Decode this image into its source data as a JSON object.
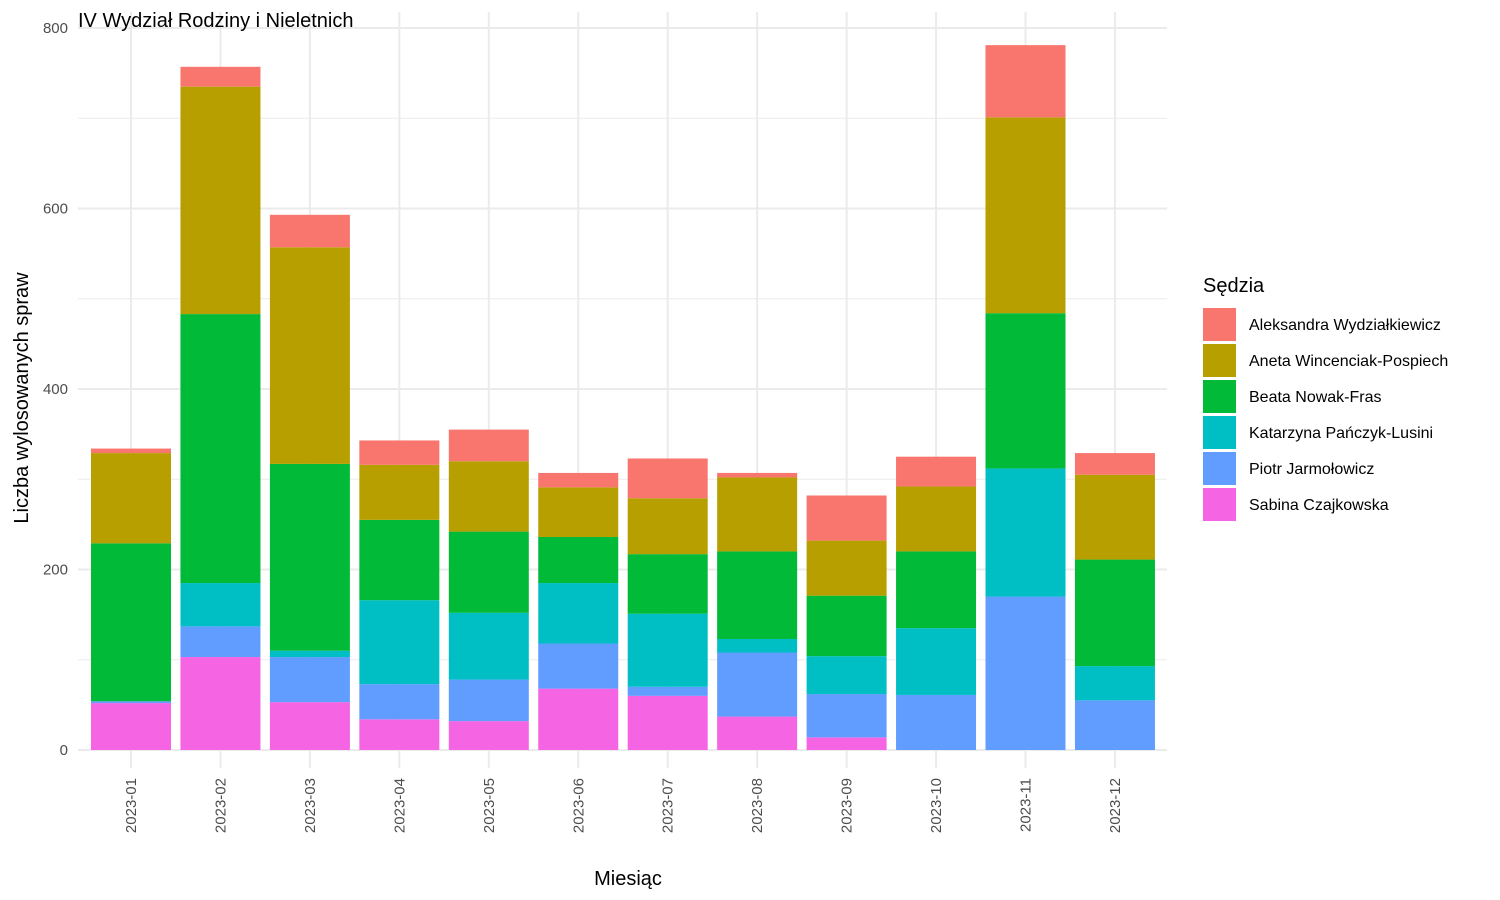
{
  "chart_data": {
    "type": "bar",
    "stacked": true,
    "title": "IV Wydział Rodziny i Nieletnich",
    "xlabel": "Miesiąc",
    "ylabel": "Liczba wylosowanych spraw",
    "ylim": [
      0,
      800
    ],
    "yticks": [
      "0",
      "200",
      "400",
      "600",
      "800"
    ],
    "grid": true,
    "legend_title": "Sędzia",
    "legend_position": "right",
    "categories": [
      "2023-01",
      "2023-02",
      "2023-03",
      "2023-04",
      "2023-05",
      "2023-06",
      "2023-07",
      "2023-08",
      "2023-09",
      "2023-10",
      "2023-11",
      "2023-12"
    ],
    "series": [
      {
        "name": "Aleksandra Wydziałkiewicz",
        "color": "#F8766D",
        "values": [
          5,
          22,
          36,
          27,
          35,
          16,
          44,
          5,
          50,
          33,
          80,
          24
        ]
      },
      {
        "name": "Aneta Wincenciak-Pospiech",
        "color": "#B79F00",
        "values": [
          100,
          252,
          240,
          61,
          78,
          55,
          62,
          82,
          61,
          72,
          217,
          94
        ]
      },
      {
        "name": "Beata Nowak-Fras",
        "color": "#00BA38",
        "values": [
          175,
          298,
          207,
          89,
          90,
          51,
          66,
          97,
          67,
          85,
          172,
          118
        ]
      },
      {
        "name": "Katarzyna Pańczyk-Lusini",
        "color": "#00BFC4",
        "values": [
          0,
          48,
          7,
          93,
          74,
          67,
          81,
          15,
          42,
          74,
          142,
          38
        ]
      },
      {
        "name": "Piotr Jarmołowicz",
        "color": "#619CFF",
        "values": [
          2,
          34,
          50,
          39,
          46,
          50,
          10,
          71,
          48,
          61,
          170,
          55
        ]
      },
      {
        "name": "Sabina Czajkowska",
        "color": "#F564E3",
        "values": [
          52,
          103,
          53,
          34,
          32,
          68,
          60,
          37,
          14,
          0,
          0,
          0
        ]
      }
    ]
  }
}
